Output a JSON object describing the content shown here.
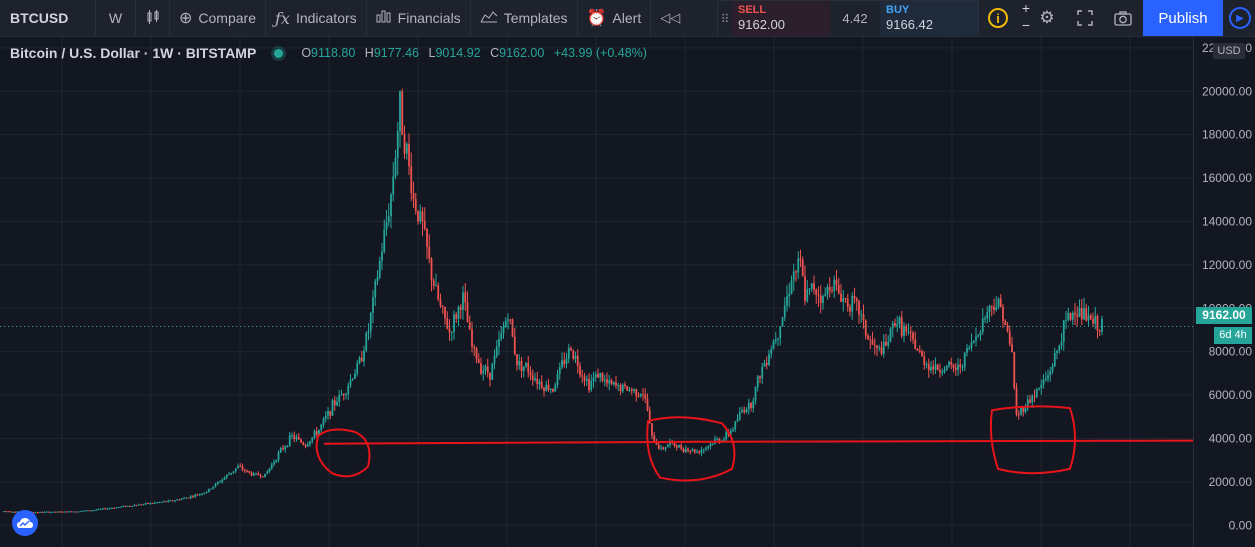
{
  "toolbar": {
    "symbol": "BTCUSD",
    "interval": "W",
    "compare_label": "Compare",
    "indicators_label": "Indicators",
    "financials_label": "Financials",
    "templates_label": "Templates",
    "alert_label": "Alert",
    "publish_label": "Publish"
  },
  "trade": {
    "sell_label": "SELL",
    "sell_price": "9162.00",
    "spread": "4.42",
    "buy_label": "BUY",
    "buy_price": "9166.42"
  },
  "legend": {
    "title": "Bitcoin / U.S. Dollar · 1W · BITSTAMP",
    "open_key": "O",
    "open": "9118.80",
    "high_key": "H",
    "high": "9177.46",
    "low_key": "L",
    "low": "9014.92",
    "close_key": "C",
    "close": "9162.00",
    "change": "+43.99 (+0.48%)"
  },
  "price_axis": {
    "currency": "USD",
    "last_price": "9162.00",
    "countdown": "6d 4h"
  },
  "icons": {
    "compare": "plus-circle-icon",
    "indicators": "fx-icon",
    "financials": "bar-chart-icon",
    "templates": "templates-icon",
    "alert": "alarm-clock-icon",
    "info": "info-icon",
    "settings": "gear-icon",
    "fullscreen": "fullscreen-icon",
    "snapshot": "camera-icon",
    "logo": "tradingview-cloud-icon"
  },
  "colors": {
    "up": "#26a69a",
    "down": "#ef5350",
    "background": "#131722",
    "annotation": "#e8141a"
  },
  "chart_data": {
    "type": "candlestick",
    "symbol": "BTCUSD",
    "interval": "1W",
    "exchange": "BITSTAMP",
    "ylim": [
      -1000,
      22500
    ],
    "y_ticks": [
      0,
      2000,
      4000,
      6000,
      8000,
      10000,
      12000,
      14000,
      16000,
      18000,
      20000,
      22000
    ],
    "y_tick_labels": [
      "0.00",
      "2000.00",
      "4000.00",
      "6000.00",
      "8000.00",
      "10000.00",
      "12000.00",
      "14000.00",
      "16000.00",
      "18000.00",
      "20000.00",
      "22000.00"
    ],
    "last_close": 9162.0,
    "grid": true,
    "support_level": 3800,
    "price_path": [
      [
        0,
        650
      ],
      [
        14,
        600
      ],
      [
        28,
        620
      ],
      [
        40,
        700
      ],
      [
        50,
        830
      ],
      [
        60,
        950
      ],
      [
        68,
        1050
      ],
      [
        76,
        1150
      ],
      [
        84,
        1350
      ],
      [
        90,
        1550
      ],
      [
        98,
        2200
      ],
      [
        104,
        2700
      ],
      [
        110,
        2350
      ],
      [
        116,
        2300
      ],
      [
        122,
        3300
      ],
      [
        128,
        4100
      ],
      [
        134,
        3700
      ],
      [
        140,
        4400
      ],
      [
        146,
        5500
      ],
      [
        152,
        6300
      ],
      [
        158,
        7500
      ],
      [
        162,
        9000
      ],
      [
        166,
        11500
      ],
      [
        172,
        15200
      ],
      [
        176,
        19300
      ],
      [
        182,
        15000
      ],
      [
        186,
        13800
      ],
      [
        190,
        11500
      ],
      [
        194,
        10000
      ],
      [
        198,
        8900
      ],
      [
        204,
        10500
      ],
      [
        208,
        8200
      ],
      [
        212,
        7300
      ],
      [
        216,
        7000
      ],
      [
        220,
        8400
      ],
      [
        224,
        9800
      ],
      [
        228,
        7500
      ],
      [
        232,
        7300
      ],
      [
        236,
        6800
      ],
      [
        240,
        6400
      ],
      [
        244,
        6300
      ],
      [
        248,
        7400
      ],
      [
        252,
        8200
      ],
      [
        256,
        7200
      ],
      [
        260,
        6500
      ],
      [
        264,
        7000
      ],
      [
        268,
        6500
      ],
      [
        272,
        6400
      ],
      [
        276,
        6300
      ],
      [
        280,
        6200
      ],
      [
        284,
        6100
      ],
      [
        286,
        5300
      ],
      [
        288,
        4000
      ],
      [
        292,
        3500
      ],
      [
        296,
        3800
      ],
      [
        300,
        3600
      ],
      [
        304,
        3500
      ],
      [
        308,
        3400
      ],
      [
        312,
        3600
      ],
      [
        316,
        3900
      ],
      [
        320,
        4000
      ],
      [
        324,
        4500
      ],
      [
        328,
        5300
      ],
      [
        332,
        5600
      ],
      [
        336,
        7000
      ],
      [
        340,
        8000
      ],
      [
        344,
        9000
      ],
      [
        348,
        10500
      ],
      [
        350,
        11500
      ],
      [
        354,
        12000
      ],
      [
        356,
        10500
      ],
      [
        360,
        11000
      ],
      [
        364,
        10400
      ],
      [
        368,
        11300
      ],
      [
        372,
        10500
      ],
      [
        376,
        10300
      ],
      [
        380,
        9900
      ],
      [
        384,
        8600
      ],
      [
        388,
        8000
      ],
      [
        392,
        8200
      ],
      [
        396,
        9500
      ],
      [
        400,
        9000
      ],
      [
        404,
        8400
      ],
      [
        408,
        7700
      ],
      [
        412,
        7300
      ],
      [
        416,
        7200
      ],
      [
        420,
        7300
      ],
      [
        424,
        7200
      ],
      [
        428,
        8000
      ],
      [
        432,
        8700
      ],
      [
        436,
        9700
      ],
      [
        440,
        10300
      ],
      [
        444,
        9900
      ],
      [
        446,
        8700
      ],
      [
        448,
        7900
      ],
      [
        450,
        5000
      ],
      [
        452,
        5300
      ],
      [
        456,
        5800
      ],
      [
        460,
        6300
      ],
      [
        464,
        6900
      ],
      [
        468,
        8000
      ],
      [
        472,
        9400
      ],
      [
        476,
        9900
      ],
      [
        480,
        9700
      ],
      [
        484,
        9300
      ],
      [
        488,
        9162
      ]
    ],
    "annotations": [
      {
        "type": "horizontal-line",
        "y": 3800,
        "label": ""
      },
      {
        "type": "freehand-circle",
        "y_center": 3750
      },
      {
        "type": "freehand-circle",
        "y_center": 3550
      },
      {
        "type": "freehand-circle",
        "y_center": 4200
      }
    ]
  }
}
